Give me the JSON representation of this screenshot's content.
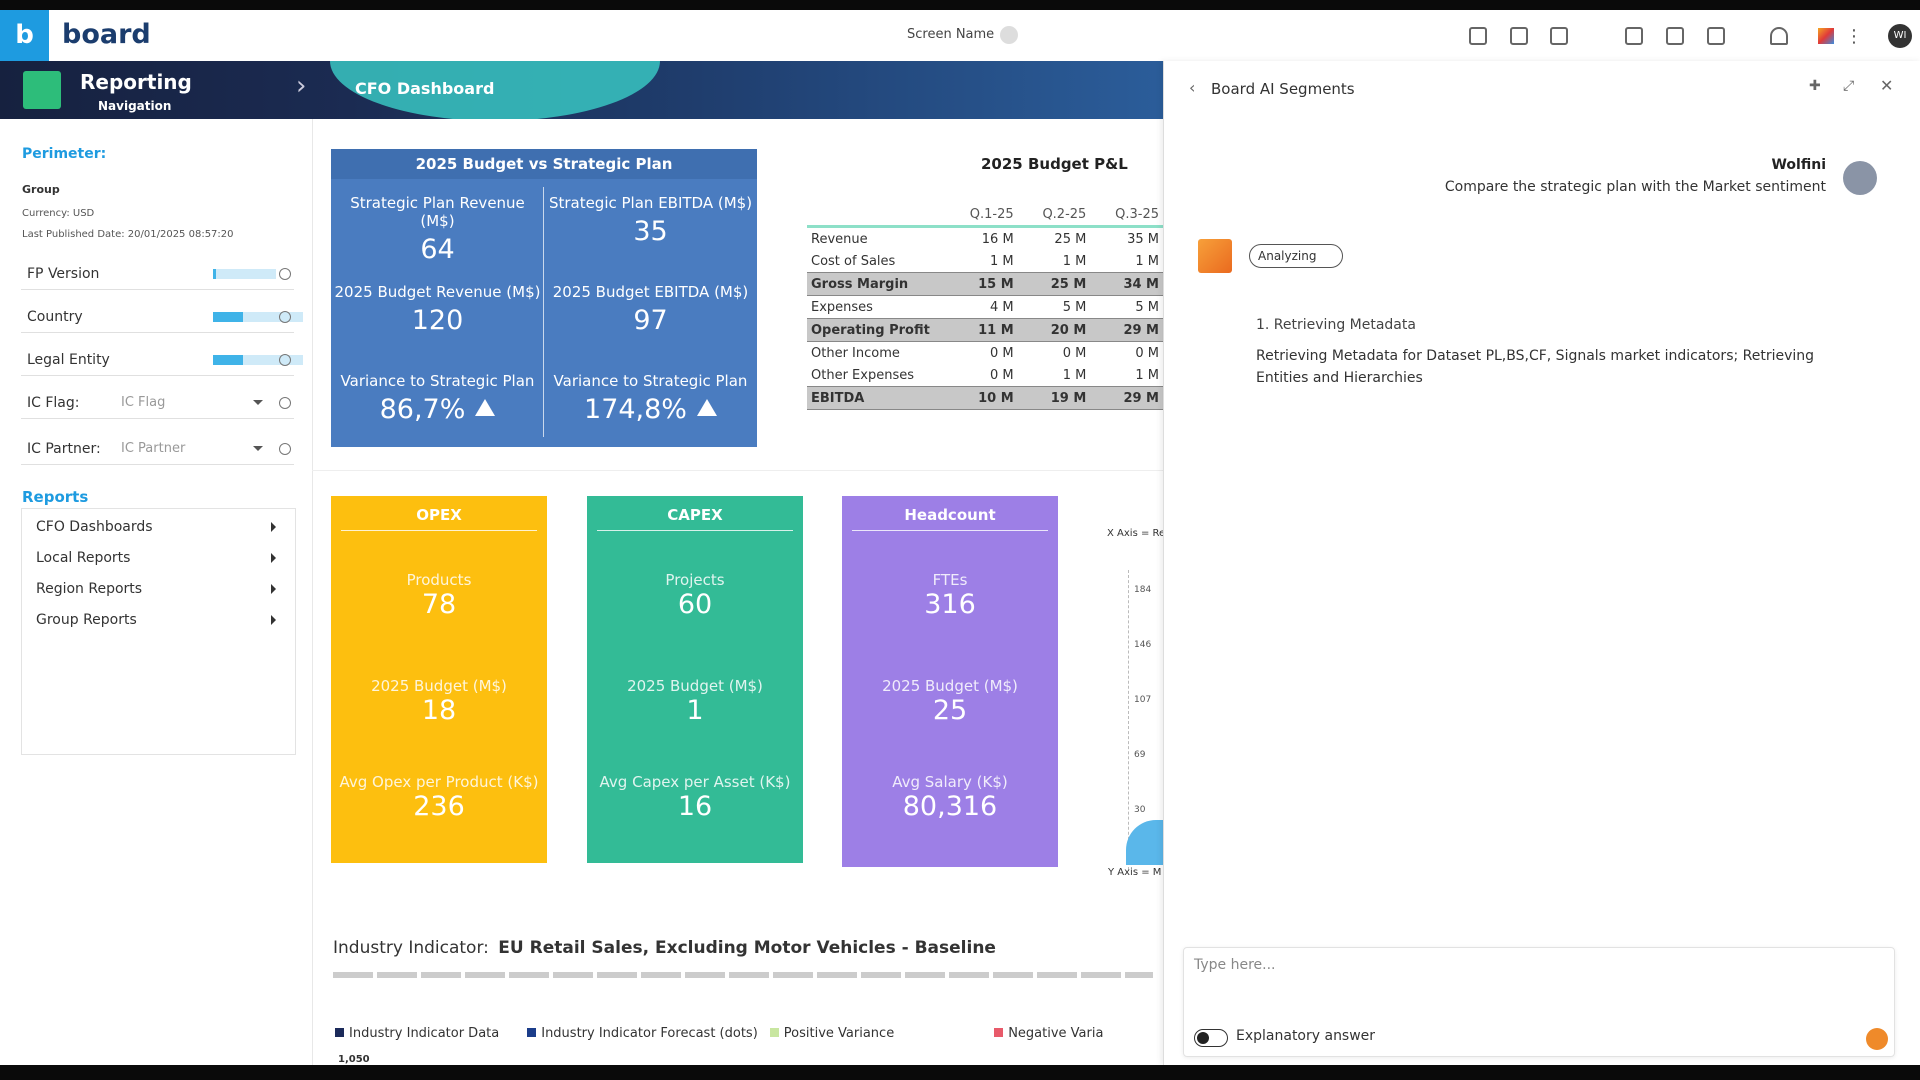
{
  "topbar": {
    "logo": "board",
    "screen_name": "Screen Name",
    "user_initials": "WI"
  },
  "breadcrumb": {
    "title": "Reporting",
    "subtitle": "Navigation",
    "page": "CFO Dashboard"
  },
  "sidebar": {
    "perimeter": "Perimeter:",
    "group": "Group",
    "currency": "Currency: USD",
    "last_published": "Last Published Date: 20/01/2025 08:57:20",
    "filters": [
      "FP Version",
      "Country",
      "Legal Entity"
    ],
    "dropdowns": [
      {
        "label": "IC Flag:",
        "placeholder": "IC Flag"
      },
      {
        "label": "IC Partner:",
        "placeholder": "IC Partner"
      }
    ],
    "reports_title": "Reports",
    "reports": [
      "CFO Dashboards",
      "Local Reports",
      "Region Reports",
      "Group Reports"
    ]
  },
  "kpi": {
    "title": "2025 Budget vs Strategic Plan",
    "cells": [
      {
        "label": "Strategic Plan Revenue (M$)",
        "value": "64"
      },
      {
        "label": "Strategic Plan EBITDA (M$)",
        "value": "35"
      },
      {
        "label": "2025 Budget Revenue (M$)",
        "value": "120"
      },
      {
        "label": "2025 Budget EBITDA (M$)",
        "value": "97"
      },
      {
        "label": "Variance to Strategic Plan",
        "value": "86,7%"
      },
      {
        "label": "Variance to Strategic Plan",
        "value": "174,8%"
      }
    ]
  },
  "pnl": {
    "title": "2025 Budget P&L",
    "columns": [
      "Q.1-25",
      "Q.2-25",
      "Q.3-25"
    ],
    "rows": [
      {
        "label": "Revenue",
        "values": [
          "16 M",
          "25 M",
          "35 M"
        ]
      },
      {
        "label": "Cost of Sales",
        "values": [
          "1 M",
          "1 M",
          "1 M"
        ]
      },
      {
        "label": "Gross Margin",
        "values": [
          "15 M",
          "25 M",
          "34 M"
        ]
      },
      {
        "label": "Expenses",
        "values": [
          "4 M",
          "5 M",
          "5 M"
        ]
      },
      {
        "label": "Operating Profit",
        "values": [
          "11 M",
          "20 M",
          "29 M"
        ]
      },
      {
        "label": "Other Income",
        "values": [
          "0 M",
          "0 M",
          "0 M"
        ]
      },
      {
        "label": "Other Expenses",
        "values": [
          "0 M",
          "1 M",
          "1 M"
        ]
      },
      {
        "label": "EBITDA",
        "values": [
          "10 M",
          "19 M",
          "29 M"
        ]
      }
    ]
  },
  "cards": [
    {
      "title": "OPEX",
      "color": "#fdbf0f",
      "metrics": [
        {
          "label": "Products",
          "value": "78"
        },
        {
          "label": "2025 Budget (M$)",
          "value": "18"
        },
        {
          "label": "Avg Opex per Product (K$)",
          "value": "236"
        }
      ]
    },
    {
      "title": "CAPEX",
      "color": "#33bb96",
      "metrics": [
        {
          "label": "Projects",
          "value": "60"
        },
        {
          "label": "2025 Budget (M$)",
          "value": "1"
        },
        {
          "label": "Avg Capex per Asset (K$)",
          "value": "16"
        }
      ]
    },
    {
      "title": "Headcount",
      "color": "#9d7fe6",
      "metrics": [
        {
          "label": "FTEs",
          "value": "316"
        },
        {
          "label": "2025 Budget (M$)",
          "value": "25"
        },
        {
          "label": "Avg Salary (K$)",
          "value": "80,316"
        }
      ]
    }
  ],
  "mini_chart": {
    "x_axis": "X Axis = Re",
    "y_axis": "Y Axis = M",
    "ticks": [
      "184",
      "146",
      "107",
      "69",
      "30"
    ]
  },
  "industry": {
    "label": "Industry Indicator:",
    "name": "EU Retail Sales, Excluding Motor Vehicles - Baseline",
    "legend": [
      "Industry Indicator Data",
      "Industry Indicator Forecast (dots)",
      "Positive Variance",
      "Negative Varia"
    ],
    "top_tick": "1,050"
  },
  "ai_panel": {
    "title": "Board AI Segments",
    "user": "Wolfini",
    "message": "Compare the strategic plan with the Market sentiment",
    "status": "Analyzing",
    "step_title": "1. Retrieving Metadata",
    "step_text": "Retrieving Metadata for Dataset PL,BS,CF, Signals market indicators; Retrieving Entities and Hierarchies",
    "input_placeholder": "Type here...",
    "toggle_label": "Explanatory answer"
  }
}
